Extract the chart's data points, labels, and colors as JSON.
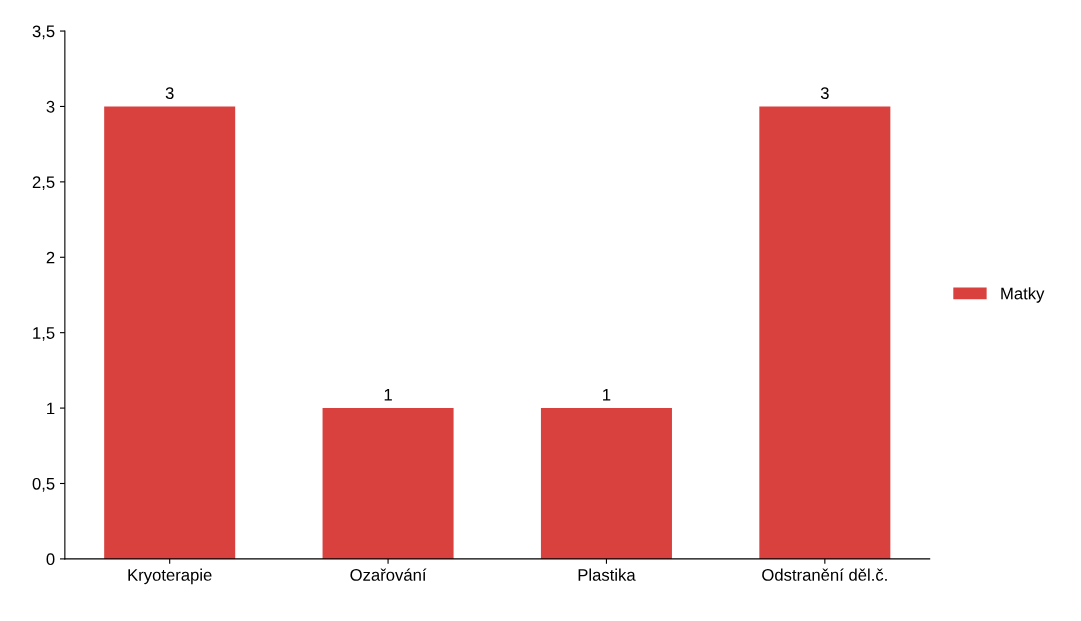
{
  "chart_data": {
    "type": "bar",
    "categories": [
      "Kryoterapie",
      "Ozařování",
      "Plastika",
      "Odstranění děl.č."
    ],
    "series": [
      {
        "name": "Matky",
        "color": "#d9413f",
        "values": [
          3,
          1,
          1,
          3
        ]
      }
    ],
    "ylim": [
      0,
      3.5
    ],
    "yticks": [
      0,
      {
        "value": 0.5,
        "label": "0,5"
      },
      1,
      {
        "value": 1.5,
        "label": "1,5"
      },
      2,
      {
        "value": 2.5,
        "label": "2,5"
      },
      3,
      {
        "value": 3.5,
        "label": "3,5"
      }
    ],
    "data_labels": true,
    "grid": false,
    "legend": "right"
  }
}
